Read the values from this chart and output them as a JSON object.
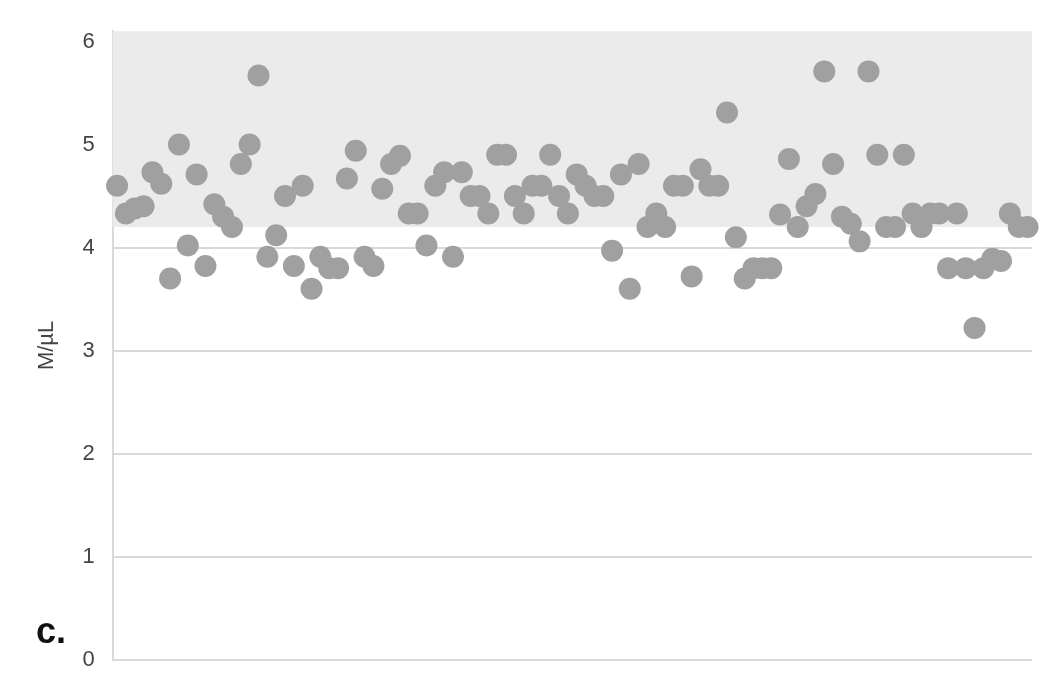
{
  "chart_data": {
    "type": "scatter",
    "ylabel": "M/µL",
    "categories": [
      null,
      null,
      null,
      null,
      null,
      null,
      null,
      null,
      null,
      null,
      null,
      null,
      null,
      null,
      null,
      null,
      null,
      null,
      null,
      null,
      null,
      null,
      null,
      null,
      null,
      null,
      null,
      null,
      null,
      null,
      null,
      null,
      null,
      null,
      null,
      null,
      null,
      null,
      null,
      null,
      null,
      null,
      null,
      null,
      null,
      null,
      null,
      null,
      null,
      null,
      null,
      null,
      null,
      null,
      null,
      null,
      null,
      null,
      null,
      null,
      null,
      null,
      null,
      null,
      null,
      null,
      null,
      null,
      null,
      null,
      null,
      null,
      null,
      null,
      null,
      null,
      null,
      null,
      null,
      null,
      null,
      null,
      null,
      null,
      null,
      null,
      null,
      null,
      null,
      null,
      null,
      null,
      null,
      null,
      null,
      null,
      null,
      null,
      null,
      null,
      null,
      null,
      null,
      null
    ],
    "series": [
      {
        "color": "#a0a0a0",
        "values": [
          4.6,
          4.33,
          4.38,
          4.4,
          4.73,
          4.62,
          3.7,
          5.0,
          4.02,
          4.71,
          3.82,
          4.42,
          4.3,
          4.2,
          4.81,
          5.0,
          5.67,
          3.91,
          4.12,
          4.5,
          3.82,
          4.6,
          3.6,
          3.91,
          3.8,
          3.8,
          4.67,
          4.94,
          3.91,
          3.82,
          4.57,
          4.81,
          4.89,
          4.33,
          4.33,
          4.02,
          4.6,
          4.73,
          3.91,
          4.73,
          4.5,
          4.5,
          4.33,
          4.9,
          4.9,
          4.5,
          4.33,
          4.6,
          4.6,
          4.9,
          4.5,
          4.33,
          4.71,
          4.6,
          4.5,
          4.5,
          3.97,
          4.71,
          3.6,
          4.81,
          4.2,
          4.33,
          4.2,
          4.6,
          4.6,
          3.72,
          4.76,
          4.6,
          4.6,
          5.31,
          4.1,
          3.7,
          3.8,
          3.8,
          3.8,
          4.32,
          4.86,
          4.2,
          4.4,
          4.52,
          5.71,
          4.81,
          4.3,
          4.23,
          4.06,
          5.71,
          4.9,
          4.2,
          4.2,
          4.9,
          4.33,
          4.2,
          4.33,
          4.33,
          3.8,
          4.33,
          3.8,
          3.22,
          3.8,
          3.89,
          3.87,
          4.33,
          4.2,
          4.2
        ]
      }
    ],
    "ylim": [
      0,
      6.1
    ],
    "yticks": [
      0,
      1,
      2,
      3,
      4,
      5,
      6
    ],
    "grid": "y",
    "marker": "circle",
    "bands": [
      {
        "axis": "y",
        "from": 4.2,
        "to": 6.1,
        "color": "#ebebeb"
      }
    ],
    "annotations": [
      "c."
    ]
  }
}
